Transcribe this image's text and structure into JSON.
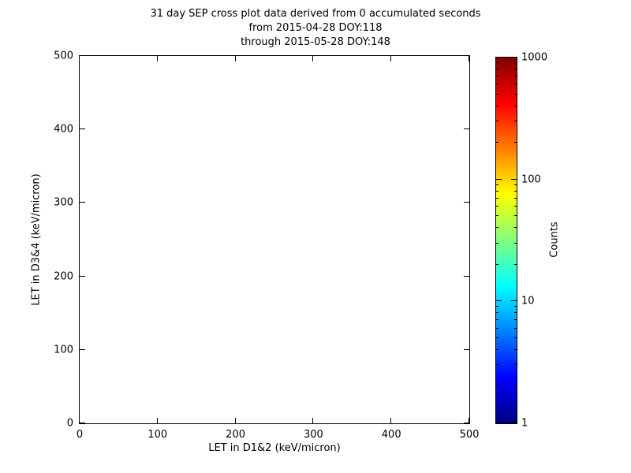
{
  "figure": {
    "background_color": "#ffffff",
    "axis_color": "#000000",
    "text_color": "#000000"
  },
  "chart_data": {
    "type": "heatmap",
    "title_lines": [
      "31 day SEP cross plot data derived from 0 accumulated seconds",
      "from 2015-04-28 DOY:118",
      "through 2015-05-28 DOY:148"
    ],
    "xlabel": "LET in D1&2 (keV/micron)",
    "ylabel": "LET in D3&4 (keV/micron)",
    "xlim": [
      0,
      500
    ],
    "ylim": [
      0,
      500
    ],
    "xticks": [
      0,
      100,
      200,
      300,
      400,
      500
    ],
    "yticks": [
      0,
      100,
      200,
      300,
      400,
      500
    ],
    "grid": false,
    "points": [],
    "colorbar": {
      "label": "Counts",
      "scale": "log",
      "min": 1,
      "max": 1000,
      "ticks": [
        1,
        10,
        100,
        1000
      ],
      "minor_multiples": [
        2,
        3,
        4,
        5,
        6,
        7,
        8,
        9
      ],
      "colormap": "jet",
      "gradient": [
        {
          "pos": 0,
          "color": "#00007f"
        },
        {
          "pos": 12.5,
          "color": "#0000ff"
        },
        {
          "pos": 37.5,
          "color": "#00ffff"
        },
        {
          "pos": 62.5,
          "color": "#ffff00"
        },
        {
          "pos": 87.5,
          "color": "#ff0000"
        },
        {
          "pos": 100,
          "color": "#7f0000"
        }
      ]
    }
  }
}
